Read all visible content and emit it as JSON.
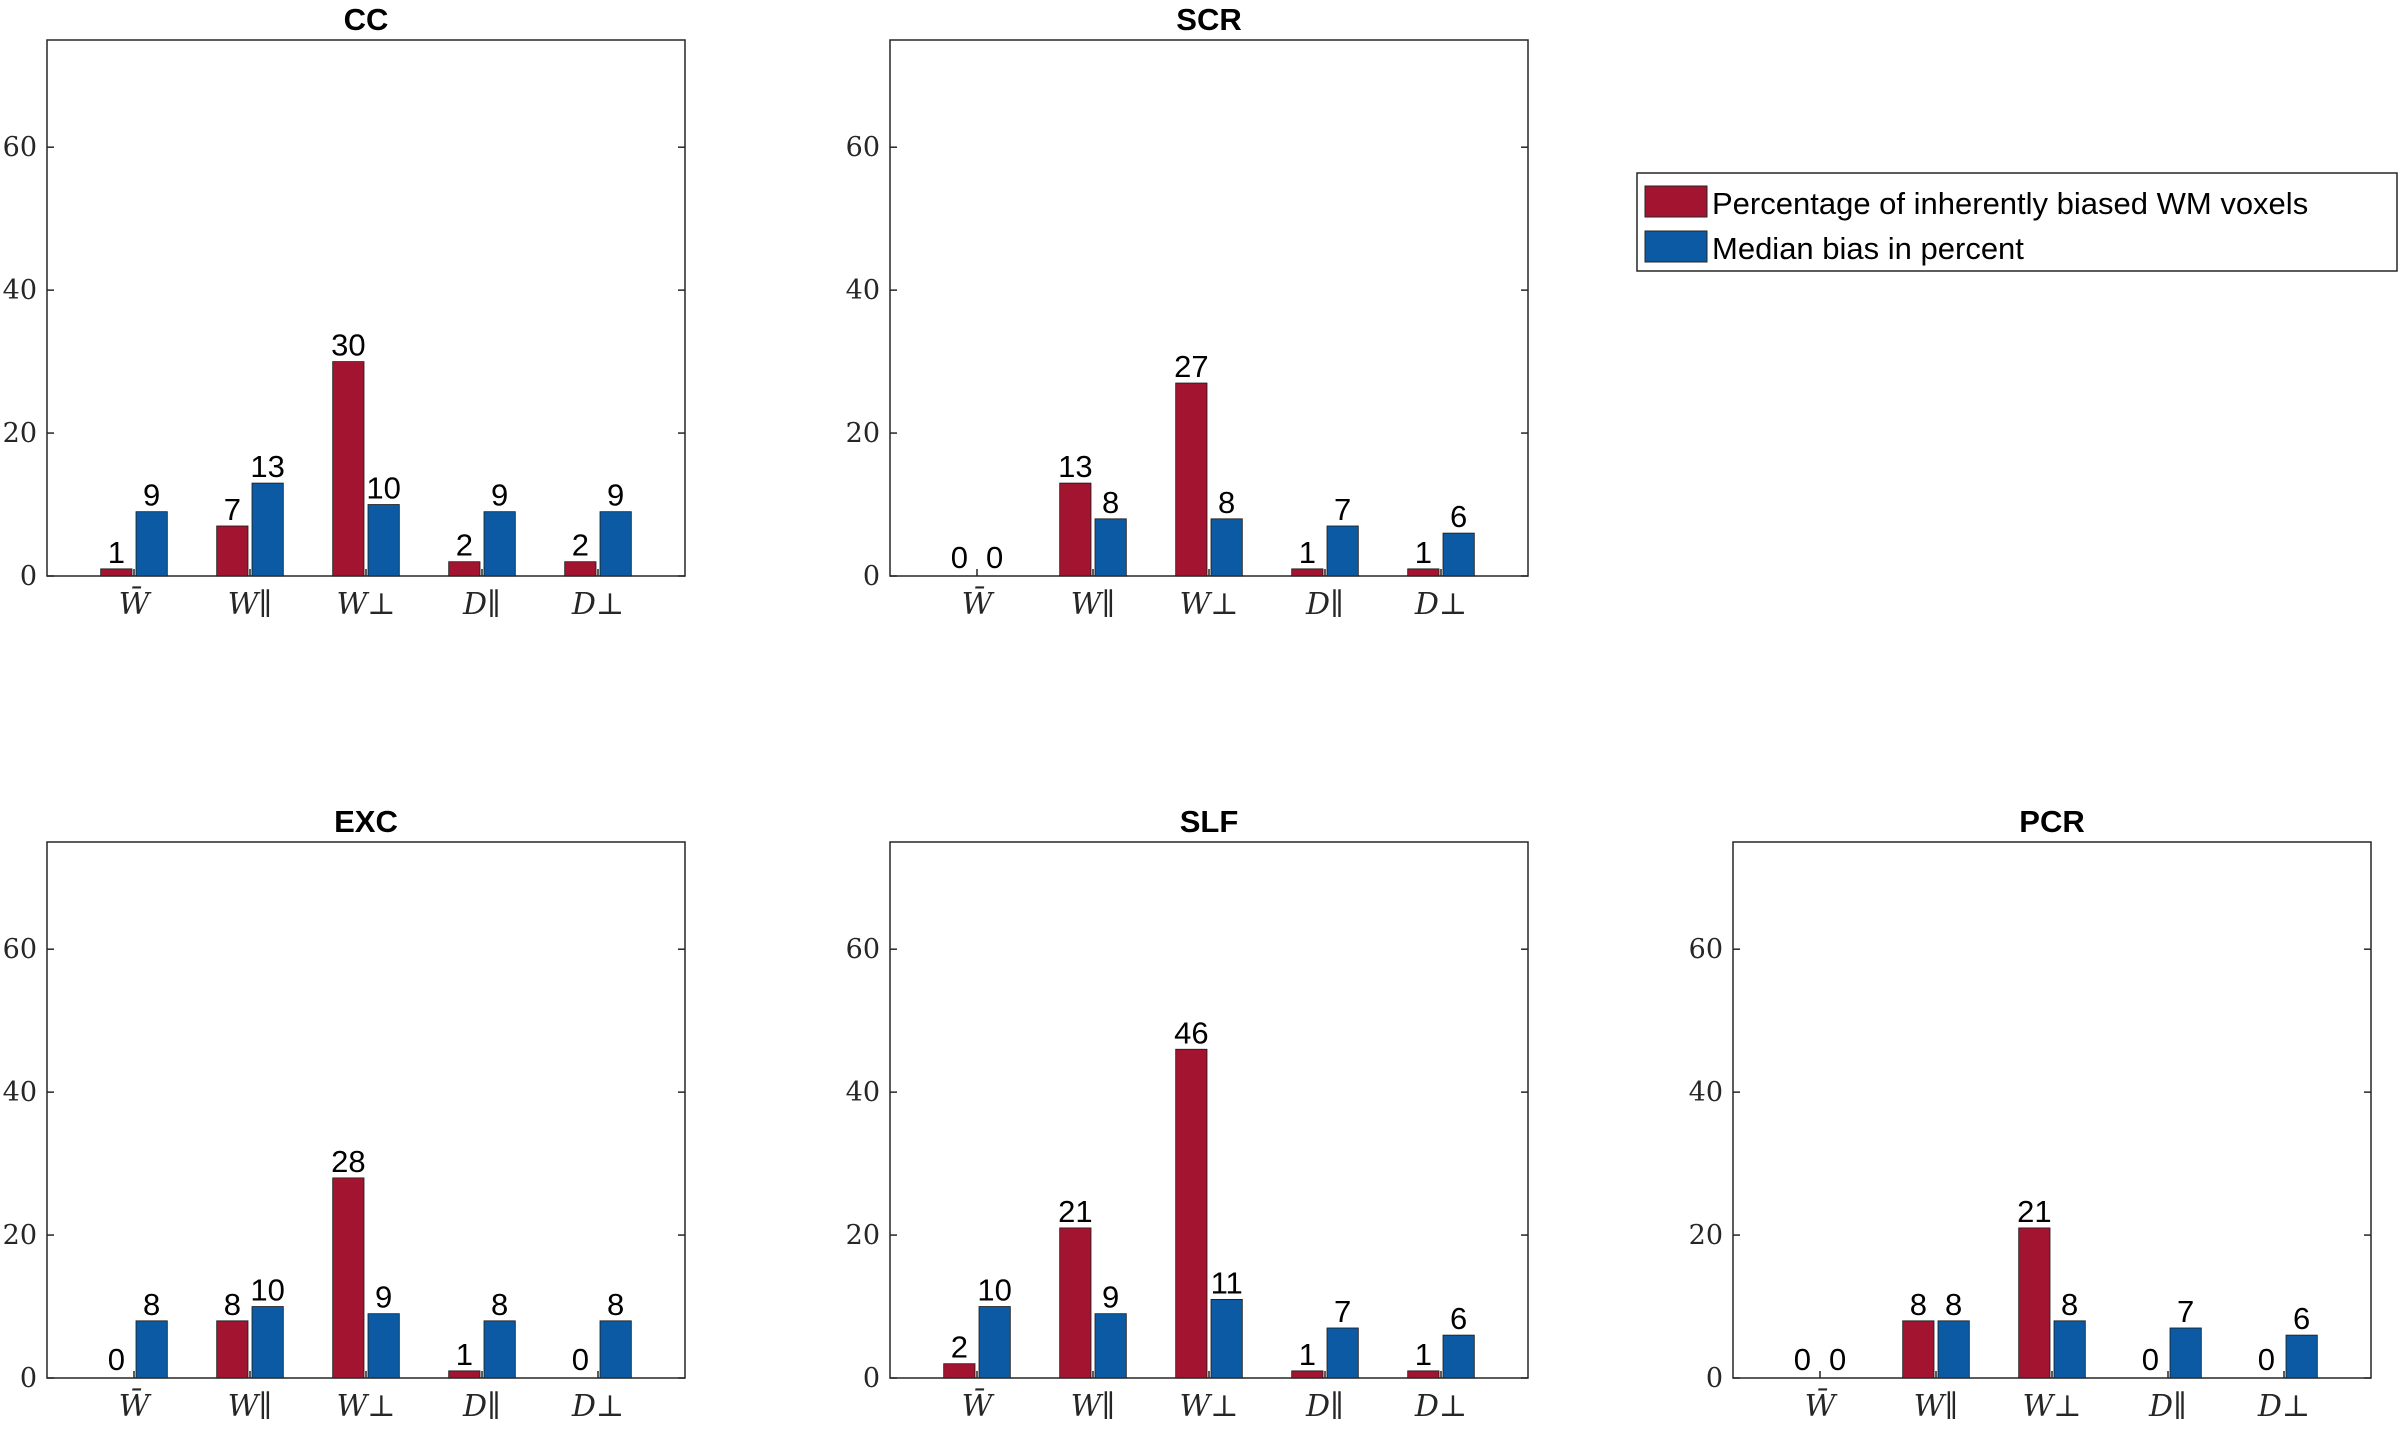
{
  "colors": {
    "series1": "#A2142F",
    "series2": "#0B5AA3",
    "axis": "#262626"
  },
  "legend": {
    "items": [
      {
        "label": "Percentage of inherently biased WM voxels"
      },
      {
        "label": "Median bias in percent"
      }
    ]
  },
  "chart_data": [
    {
      "type": "bar",
      "title": "CC",
      "categories": [
        "W̄",
        "W∥",
        "W⊥",
        "D∥",
        "D⊥"
      ],
      "ylim": [
        0,
        75
      ],
      "yticks": [
        0,
        20,
        40,
        60
      ],
      "series": [
        {
          "name": "Percentage of inherently biased WM voxels",
          "values": [
            1,
            7,
            30,
            2,
            2
          ],
          "labels": [
            "1",
            "7",
            "30",
            "2",
            "2"
          ]
        },
        {
          "name": "Median bias in percent",
          "values": [
            9,
            13,
            10,
            9,
            9
          ],
          "labels": [
            "9",
            "13",
            "10",
            "9",
            "9"
          ]
        }
      ]
    },
    {
      "type": "bar",
      "title": "SCR",
      "categories": [
        "W̄",
        "W∥",
        "W⊥",
        "D∥",
        "D⊥"
      ],
      "ylim": [
        0,
        75
      ],
      "yticks": [
        0,
        20,
        40,
        60
      ],
      "series": [
        {
          "name": "Percentage of inherently biased WM voxels",
          "values": [
            0,
            13,
            27,
            1,
            1
          ],
          "labels": [
            "0",
            "13",
            "27",
            "1",
            "1"
          ]
        },
        {
          "name": "Median bias in percent",
          "values": [
            0,
            8,
            8,
            7,
            6
          ],
          "labels": [
            "0",
            "8",
            "8",
            "7",
            "6"
          ]
        }
      ]
    },
    {
      "type": "bar",
      "title": "EXC",
      "categories": [
        "W̄",
        "W∥",
        "W⊥",
        "D∥",
        "D⊥"
      ],
      "ylim": [
        0,
        75
      ],
      "yticks": [
        0,
        20,
        40,
        60
      ],
      "series": [
        {
          "name": "Percentage of inherently biased WM voxels",
          "values": [
            0,
            8,
            28,
            1,
            0
          ],
          "labels": [
            "0",
            "8",
            "28",
            "1",
            "0"
          ]
        },
        {
          "name": "Median bias in percent",
          "values": [
            8,
            10,
            9,
            8,
            8
          ],
          "labels": [
            "8",
            "10",
            "9",
            "8",
            "8"
          ]
        }
      ]
    },
    {
      "type": "bar",
      "title": "SLF",
      "categories": [
        "W̄",
        "W∥",
        "W⊥",
        "D∥",
        "D⊥"
      ],
      "ylim": [
        0,
        75
      ],
      "yticks": [
        0,
        20,
        40,
        60
      ],
      "series": [
        {
          "name": "Percentage of inherently biased WM voxels",
          "values": [
            2,
            21,
            46,
            1,
            1
          ],
          "labels": [
            "2",
            "21",
            "46",
            "1",
            "1"
          ]
        },
        {
          "name": "Median bias in percent",
          "values": [
            10,
            9,
            11,
            7,
            6
          ],
          "labels": [
            "10",
            "9",
            "11",
            "7",
            "6"
          ]
        }
      ]
    },
    {
      "type": "bar",
      "title": "PCR",
      "categories": [
        "W̄",
        "W∥",
        "W⊥",
        "D∥",
        "D⊥"
      ],
      "ylim": [
        0,
        75
      ],
      "yticks": [
        0,
        20,
        40,
        60
      ],
      "series": [
        {
          "name": "Percentage of inherently biased WM voxels",
          "values": [
            0,
            8,
            21,
            0,
            0
          ],
          "labels": [
            "0",
            "8",
            "21",
            "0",
            "0"
          ]
        },
        {
          "name": "Median bias in percent",
          "values": [
            0,
            8,
            8,
            7,
            6
          ],
          "labels": [
            "0",
            "8",
            "8",
            "7",
            "6"
          ]
        }
      ]
    }
  ]
}
